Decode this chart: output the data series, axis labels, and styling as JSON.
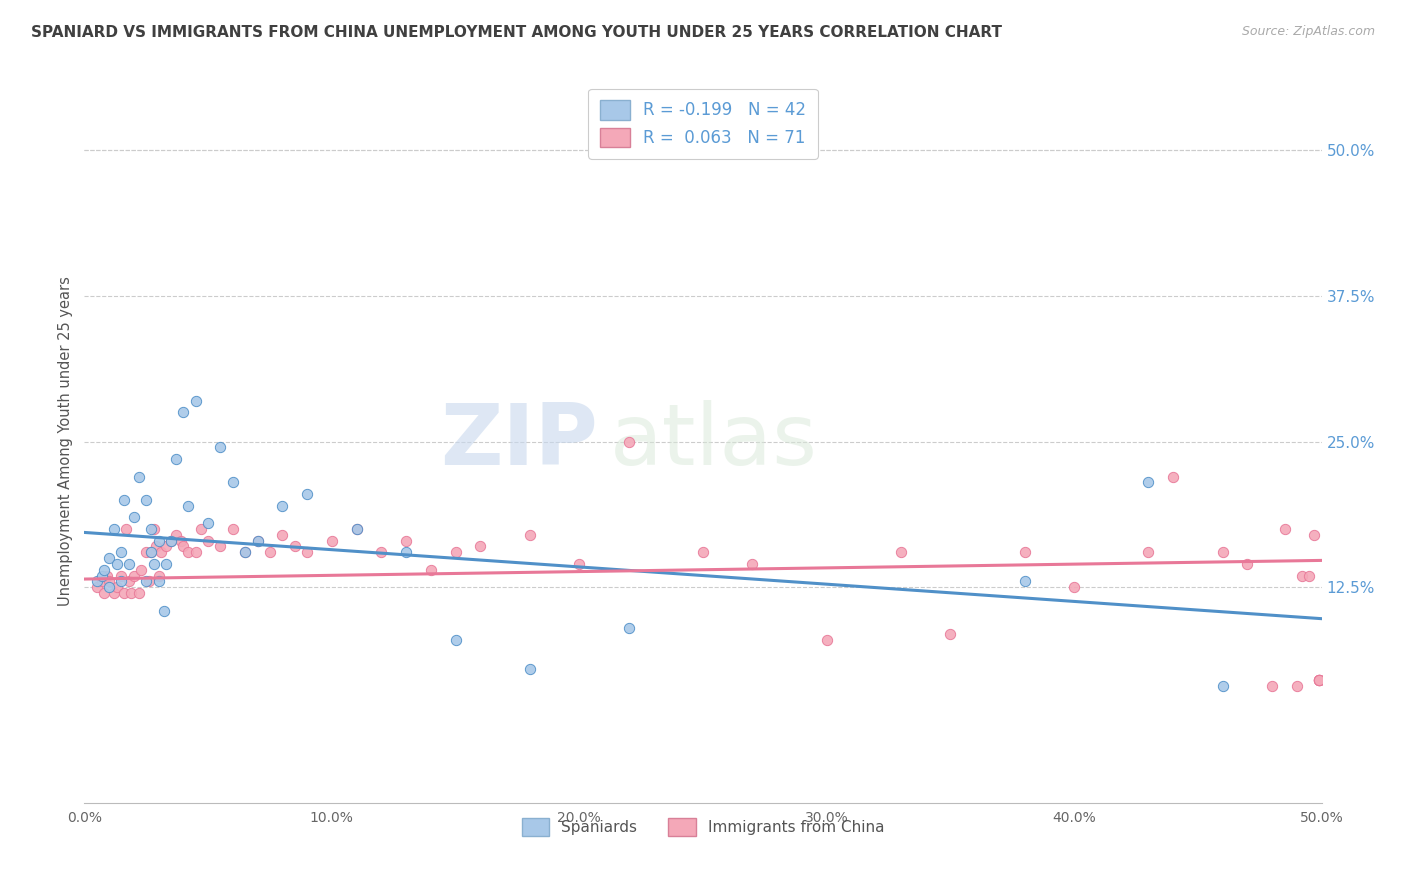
{
  "title": "SPANIARD VS IMMIGRANTS FROM CHINA UNEMPLOYMENT AMONG YOUTH UNDER 25 YEARS CORRELATION CHART",
  "source": "Source: ZipAtlas.com",
  "ylabel": "Unemployment Among Youth under 25 years",
  "right_yticks": [
    "50.0%",
    "37.5%",
    "25.0%",
    "12.5%"
  ],
  "right_ytick_vals": [
    0.5,
    0.375,
    0.25,
    0.125
  ],
  "xmin": 0.0,
  "xmax": 0.5,
  "ymin": -0.06,
  "ymax": 0.56,
  "legend_label1": "Spaniards",
  "legend_label2": "Immigrants from China",
  "R1": -0.199,
  "N1": 42,
  "R2": 0.063,
  "N2": 71,
  "color_blue": "#a8c8e8",
  "color_pink": "#f4a8b8",
  "line_blue": "#5090c8",
  "line_pink": "#e87898",
  "title_color": "#404040",
  "right_axis_color": "#5b9bd5",
  "watermark_zip": "ZIP",
  "watermark_atlas": "atlas",
  "spaniards_x": [
    0.005,
    0.007,
    0.008,
    0.01,
    0.01,
    0.012,
    0.013,
    0.015,
    0.015,
    0.016,
    0.018,
    0.02,
    0.022,
    0.025,
    0.025,
    0.027,
    0.027,
    0.028,
    0.03,
    0.03,
    0.032,
    0.033,
    0.035,
    0.037,
    0.04,
    0.042,
    0.045,
    0.05,
    0.055,
    0.06,
    0.065,
    0.07,
    0.08,
    0.09,
    0.11,
    0.13,
    0.15,
    0.18,
    0.22,
    0.38,
    0.43,
    0.46
  ],
  "spaniards_y": [
    0.13,
    0.135,
    0.14,
    0.125,
    0.15,
    0.175,
    0.145,
    0.13,
    0.155,
    0.2,
    0.145,
    0.185,
    0.22,
    0.13,
    0.2,
    0.155,
    0.175,
    0.145,
    0.13,
    0.165,
    0.105,
    0.145,
    0.165,
    0.235,
    0.275,
    0.195,
    0.285,
    0.18,
    0.245,
    0.215,
    0.155,
    0.165,
    0.195,
    0.205,
    0.175,
    0.155,
    0.08,
    0.055,
    0.09,
    0.13,
    0.215,
    0.04
  ],
  "china_x": [
    0.005,
    0.007,
    0.008,
    0.009,
    0.01,
    0.012,
    0.013,
    0.015,
    0.016,
    0.017,
    0.018,
    0.019,
    0.02,
    0.022,
    0.023,
    0.025,
    0.026,
    0.027,
    0.028,
    0.029,
    0.03,
    0.031,
    0.033,
    0.035,
    0.037,
    0.039,
    0.04,
    0.042,
    0.045,
    0.047,
    0.05,
    0.055,
    0.06,
    0.065,
    0.07,
    0.075,
    0.08,
    0.085,
    0.09,
    0.1,
    0.11,
    0.12,
    0.13,
    0.14,
    0.15,
    0.16,
    0.18,
    0.2,
    0.22,
    0.25,
    0.27,
    0.3,
    0.33,
    0.35,
    0.38,
    0.4,
    0.43,
    0.44,
    0.46,
    0.47,
    0.48,
    0.485,
    0.49,
    0.492,
    0.495,
    0.497,
    0.499,
    0.499,
    0.499,
    0.499,
    0.499
  ],
  "china_y": [
    0.125,
    0.13,
    0.12,
    0.135,
    0.13,
    0.12,
    0.125,
    0.135,
    0.12,
    0.175,
    0.13,
    0.12,
    0.135,
    0.12,
    0.14,
    0.155,
    0.13,
    0.155,
    0.175,
    0.16,
    0.135,
    0.155,
    0.16,
    0.165,
    0.17,
    0.165,
    0.16,
    0.155,
    0.155,
    0.175,
    0.165,
    0.16,
    0.175,
    0.155,
    0.165,
    0.155,
    0.17,
    0.16,
    0.155,
    0.165,
    0.175,
    0.155,
    0.165,
    0.14,
    0.155,
    0.16,
    0.17,
    0.145,
    0.25,
    0.155,
    0.145,
    0.08,
    0.155,
    0.085,
    0.155,
    0.125,
    0.155,
    0.22,
    0.155,
    0.145,
    0.04,
    0.175,
    0.04,
    0.135,
    0.135,
    0.17,
    0.045,
    0.045,
    0.045,
    0.045,
    0.045
  ],
  "blue_line_x": [
    0.0,
    0.5
  ],
  "blue_line_y": [
    0.172,
    0.098
  ],
  "pink_line_x": [
    0.0,
    0.5
  ],
  "pink_line_y": [
    0.132,
    0.148
  ]
}
